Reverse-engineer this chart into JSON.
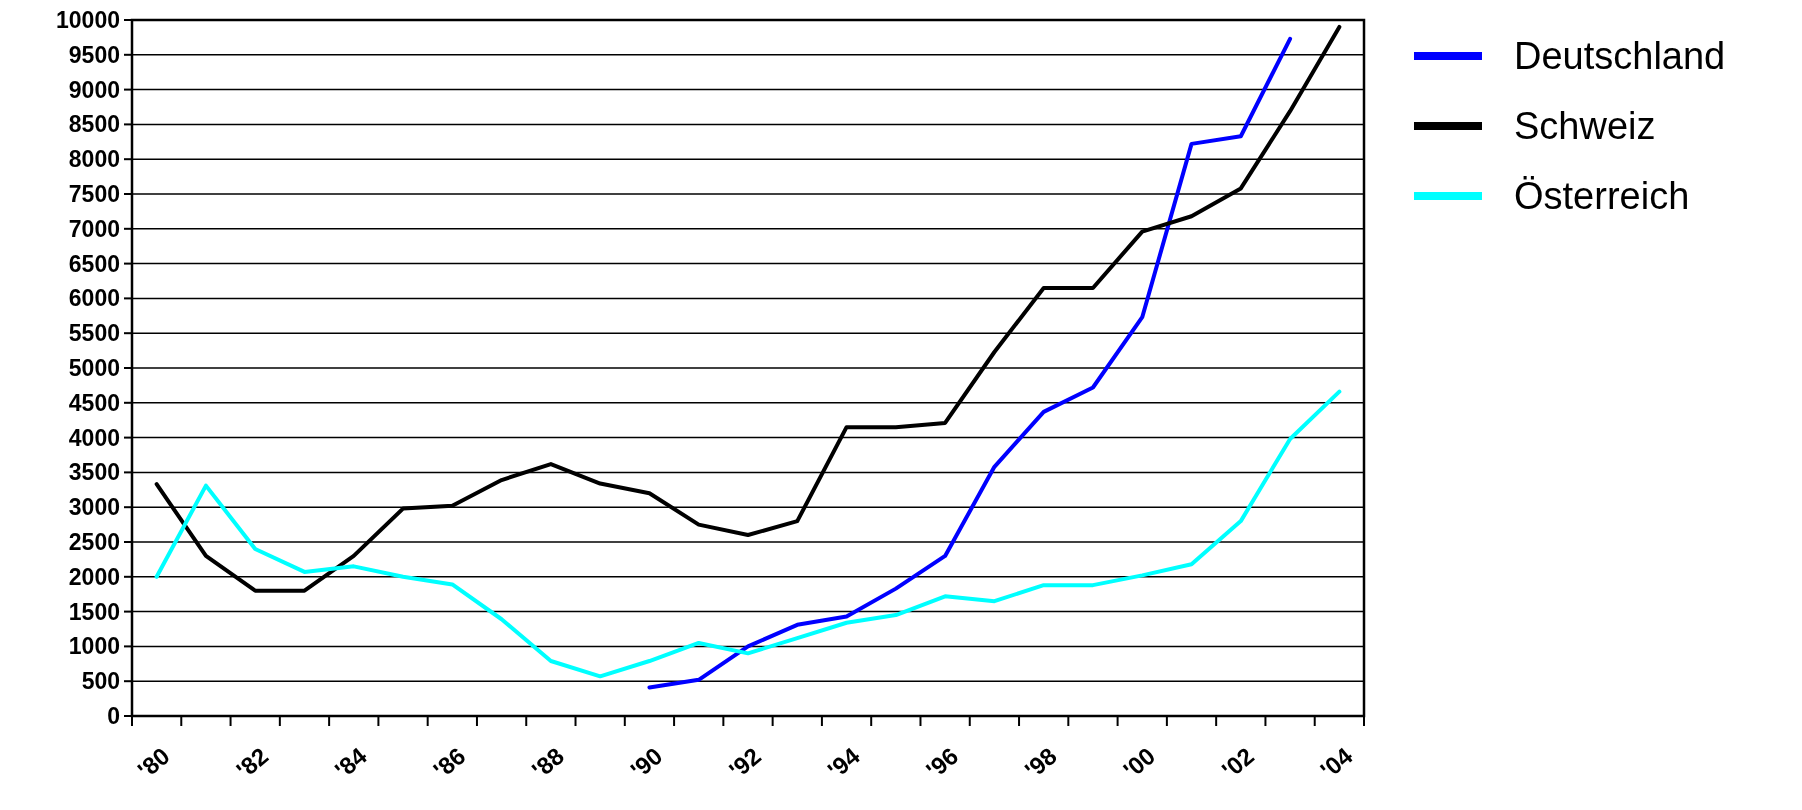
{
  "chart_data": {
    "type": "line",
    "categories": [
      "'80",
      null,
      "'82",
      null,
      "'84",
      null,
      "'86",
      null,
      "'88",
      null,
      "'90",
      null,
      "'92",
      null,
      "'94",
      null,
      "'96",
      null,
      "'98",
      null,
      "'00",
      null,
      "'02",
      null,
      "'04"
    ],
    "series": [
      {
        "name": "Deutschland",
        "color": "#0000ff",
        "values": [
          null,
          null,
          null,
          null,
          null,
          null,
          null,
          null,
          null,
          null,
          410,
          520,
          1000,
          1310,
          1430,
          1830,
          2300,
          3580,
          4370,
          4720,
          5730,
          8220,
          8330,
          9730,
          null
        ]
      },
      {
        "name": "Schweiz",
        "color": "#000000",
        "values": [
          3330,
          2300,
          1800,
          1800,
          2300,
          2980,
          3020,
          3390,
          3620,
          3340,
          3200,
          2750,
          2600,
          2800,
          4150,
          4150,
          4210,
          5230,
          6150,
          6150,
          6960,
          7180,
          7580,
          8690,
          9900
        ]
      },
      {
        "name": "Österreich",
        "color": "#00ffff",
        "values": [
          2000,
          3310,
          2400,
          2070,
          2150,
          2000,
          1890,
          1390,
          790,
          570,
          790,
          1050,
          900,
          1120,
          1340,
          1450,
          1720,
          1650,
          1880,
          1880,
          2020,
          2180,
          2800,
          3980,
          4660
        ]
      }
    ],
    "ylim": [
      0,
      10000
    ],
    "yticks": [
      0,
      500,
      1000,
      1500,
      2000,
      2500,
      3000,
      3500,
      4000,
      4500,
      5000,
      5500,
      6000,
      6500,
      7000,
      7500,
      8000,
      8500,
      9000,
      9500,
      10000
    ],
    "grid": "y",
    "legend": "top right"
  }
}
